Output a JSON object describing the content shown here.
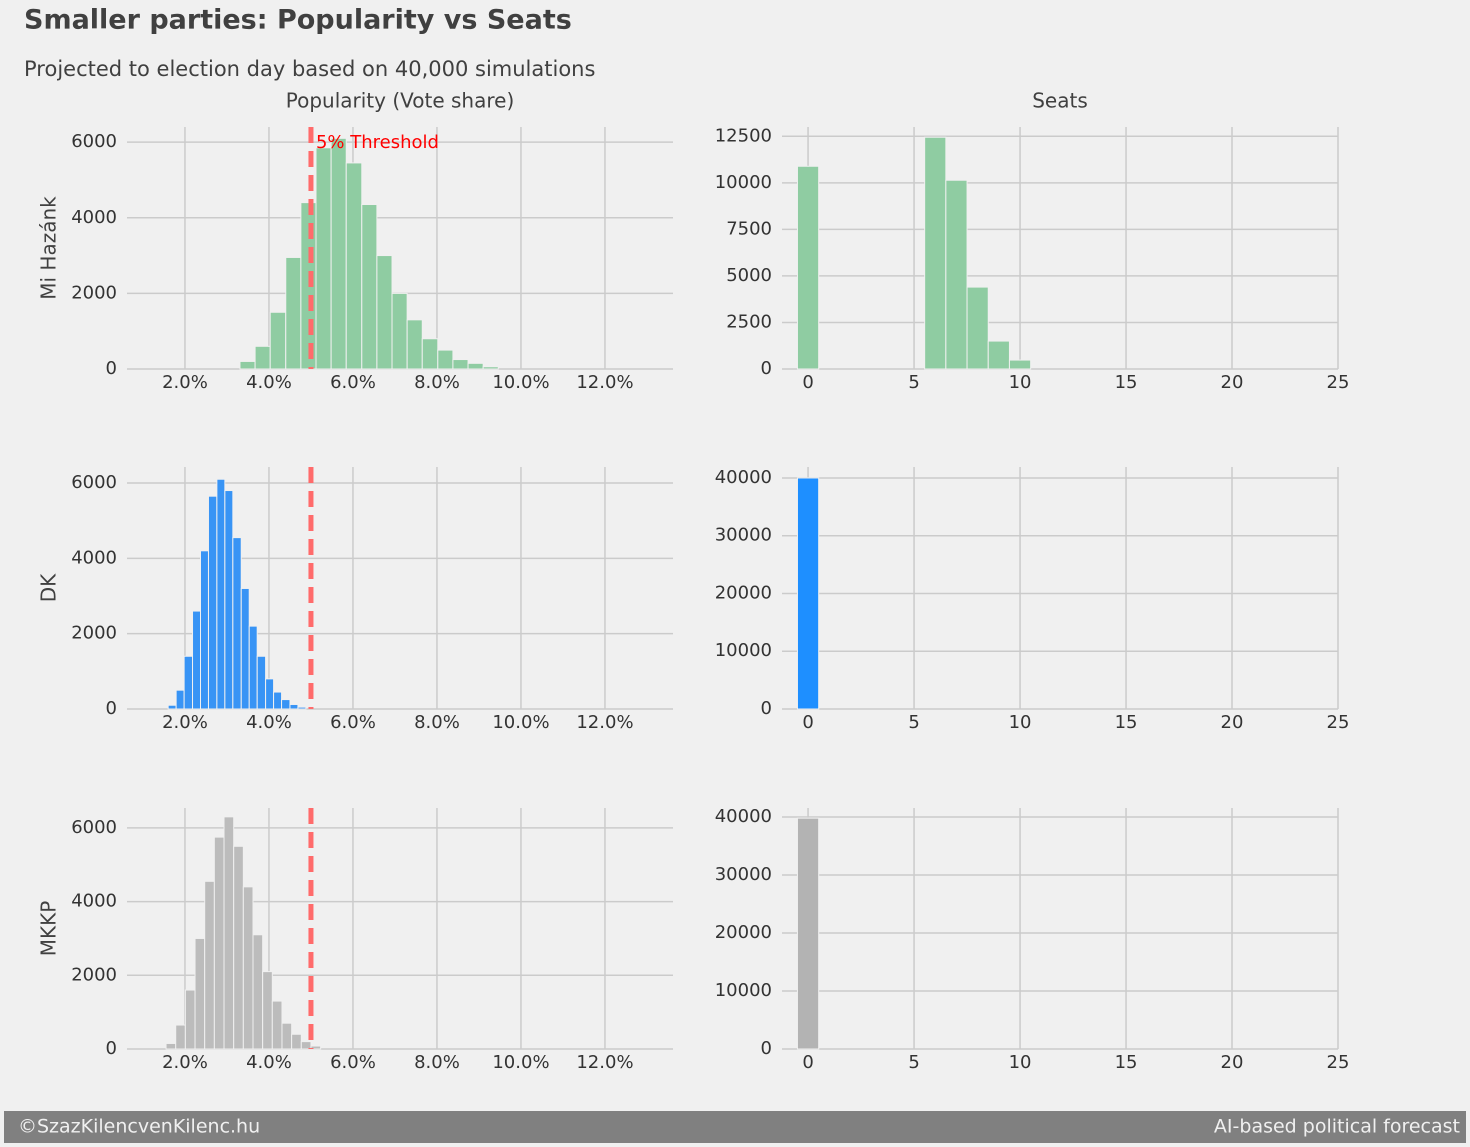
{
  "title": "Smaller parties: Popularity vs Seats",
  "subtitle": "Projected to election day based on 40,000 simulations",
  "footer": {
    "left": "©SzazKilencvenKilenc.hu",
    "right": "AI-based political forecast"
  },
  "chart_data": [
    {
      "type": "histogram",
      "title": "Popularity (Vote share)",
      "ylabel": "Mi Hazánk",
      "color": "#8fcca2",
      "bins": [
        3.31,
        3.67,
        4.03,
        4.4,
        4.76,
        5.12,
        5.48,
        5.84,
        6.21,
        6.57,
        6.93,
        7.29,
        7.65,
        8.02,
        8.38,
        8.74,
        9.1,
        9.46
      ],
      "values": [
        200,
        600,
        1500,
        2950,
        4400,
        5850,
        6100,
        5450,
        4350,
        3000,
        2000,
        1300,
        800,
        500,
        250,
        150,
        60
      ],
      "xlim": [
        0.62,
        13.62
      ],
      "ylim": [
        0,
        6400
      ],
      "xticks": [
        {
          "value": 2,
          "label": "2.0%"
        },
        {
          "value": 4,
          "label": "4.0%"
        },
        {
          "value": 6,
          "label": "6.0%"
        },
        {
          "value": 8,
          "label": "8.0%"
        },
        {
          "value": 10,
          "label": "10.0%"
        },
        {
          "value": 12,
          "label": "12.0%"
        }
      ],
      "yticks": [
        0,
        2000,
        4000,
        6000
      ],
      "grid": true,
      "threshold": 5,
      "threshold_color": "#ff6b6b",
      "annotation": "5% Threshold",
      "annotation_color": "#ff0000"
    },
    {
      "type": "histogram",
      "title": "Seats",
      "color": "#8fcca2",
      "bins": [
        -0.5,
        0.5,
        1.5,
        2.5,
        3.5,
        4.5,
        5.5,
        6.5,
        7.5,
        8.5,
        9.5,
        10.5
      ],
      "values": [
        10890,
        0,
        0,
        0,
        0,
        0,
        12450,
        10140,
        4400,
        1500,
        480
      ],
      "xlim": [
        -1.23,
        25
      ],
      "ylim": [
        0,
        13000
      ],
      "xticks": [
        0,
        5,
        10,
        15,
        20,
        25
      ],
      "yticks": [
        0,
        2500,
        5000,
        7500,
        10000,
        12500
      ],
      "grid": true
    },
    {
      "type": "histogram",
      "ylabel": "DK",
      "color": "#3894f5",
      "bins": [
        1.6,
        1.79,
        1.98,
        2.18,
        2.37,
        2.56,
        2.76,
        2.95,
        3.14,
        3.34,
        3.53,
        3.72,
        3.92,
        4.11,
        4.3,
        4.5,
        4.69,
        4.88
      ],
      "values": [
        100,
        500,
        1400,
        2600,
        4200,
        5650,
        6100,
        5800,
        4550,
        3200,
        2200,
        1400,
        800,
        450,
        250,
        120,
        50
      ],
      "xlim": [
        0.62,
        13.62
      ],
      "ylim": [
        0,
        6425
      ],
      "xticks": [
        {
          "value": 2,
          "label": "2.0%"
        },
        {
          "value": 4,
          "label": "4.0%"
        },
        {
          "value": 6,
          "label": "6.0%"
        },
        {
          "value": 8,
          "label": "8.0%"
        },
        {
          "value": 10,
          "label": "10.0%"
        },
        {
          "value": 12,
          "label": "12.0%"
        }
      ],
      "yticks": [
        0,
        2000,
        4000,
        6000
      ],
      "grid": true,
      "threshold": 5,
      "threshold_color": "#ff6b6b"
    },
    {
      "type": "histogram",
      "color": "#1e8fff",
      "bins": [
        -0.5,
        0.5
      ],
      "values": [
        40000
      ],
      "xlim": [
        -1.23,
        25
      ],
      "ylim": [
        0,
        41900
      ],
      "xticks": [
        0,
        5,
        10,
        15,
        20,
        25
      ],
      "yticks": [
        0,
        10000,
        20000,
        30000,
        40000
      ],
      "grid": true
    },
    {
      "type": "histogram",
      "ylabel": "MKKP",
      "color": "#bcbcbc",
      "bins": [
        1.55,
        1.78,
        2.01,
        2.24,
        2.47,
        2.7,
        2.93,
        3.16,
        3.39,
        3.62,
        3.85,
        4.08,
        4.31,
        4.54,
        4.77,
        5.0,
        5.23
      ],
      "values": [
        150,
        650,
        1600,
        3000,
        4550,
        5750,
        6300,
        5500,
        4400,
        3100,
        2100,
        1300,
        700,
        400,
        200,
        80
      ],
      "xlim": [
        0.62,
        13.62
      ],
      "ylim": [
        0,
        6540
      ],
      "xticks": [
        {
          "value": 2,
          "label": "2.0%"
        },
        {
          "value": 4,
          "label": "4.0%"
        },
        {
          "value": 6,
          "label": "6.0%"
        },
        {
          "value": 8,
          "label": "8.0%"
        },
        {
          "value": 10,
          "label": "10.0%"
        },
        {
          "value": 12,
          "label": "12.0%"
        }
      ],
      "yticks": [
        0,
        2000,
        4000,
        6000
      ],
      "grid": true,
      "threshold": 5,
      "threshold_color": "#ff6b6b"
    },
    {
      "type": "histogram",
      "color": "#b3b3b3",
      "bins": [
        -0.5,
        0.5
      ],
      "values": [
        39800
      ],
      "xlim": [
        -1.23,
        25
      ],
      "ylim": [
        0,
        41550
      ],
      "xticks": [
        0,
        5,
        10,
        15,
        20,
        25
      ],
      "yticks": [
        0,
        10000,
        20000,
        30000,
        40000
      ],
      "grid": true
    }
  ]
}
